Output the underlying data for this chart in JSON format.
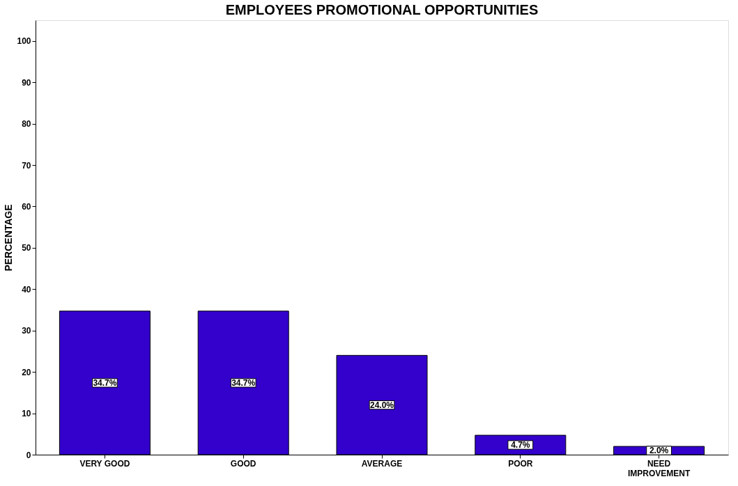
{
  "chart_data": {
    "type": "bar",
    "title": "EMPLOYEES PROMOTIONAL OPPORTUNITIES",
    "ylabel": "PERCENTAGE",
    "categories": [
      "VERY GOOD",
      "GOOD",
      "AVERAGE",
      "POOR",
      "NEED IMPROVEMENT"
    ],
    "values": [
      34.7,
      34.7,
      24.0,
      4.7,
      2.0
    ],
    "value_labels": [
      "34.7%",
      "34.7%",
      "24.0%",
      "4.7%",
      "2.0%"
    ],
    "color": "#3300cc",
    "ylim": [
      0,
      105
    ],
    "yticks": [
      0,
      10,
      20,
      30,
      40,
      50,
      60,
      70,
      80,
      90,
      100
    ],
    "grid": false
  }
}
